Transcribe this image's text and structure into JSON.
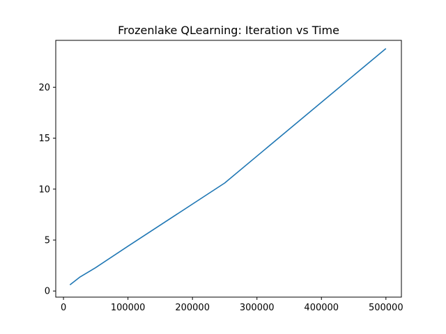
{
  "chart_data": {
    "type": "line",
    "title": "Frozenlake QLearning: Iteration vs Time",
    "xlabel": "",
    "ylabel": "",
    "xlim": [
      -12000,
      524000
    ],
    "ylim": [
      -0.6,
      24.6
    ],
    "xticks": [
      0,
      100000,
      200000,
      300000,
      400000,
      500000
    ],
    "yticks": [
      0,
      5,
      10,
      15,
      20
    ],
    "grid": false,
    "legend": "none",
    "series": [
      {
        "color": "#1f77b4",
        "x": [
          10000,
          25000,
          50000,
          100000,
          250000,
          500000
        ],
        "y": [
          0.6,
          1.35,
          2.3,
          4.4,
          10.6,
          23.8
        ]
      }
    ]
  }
}
